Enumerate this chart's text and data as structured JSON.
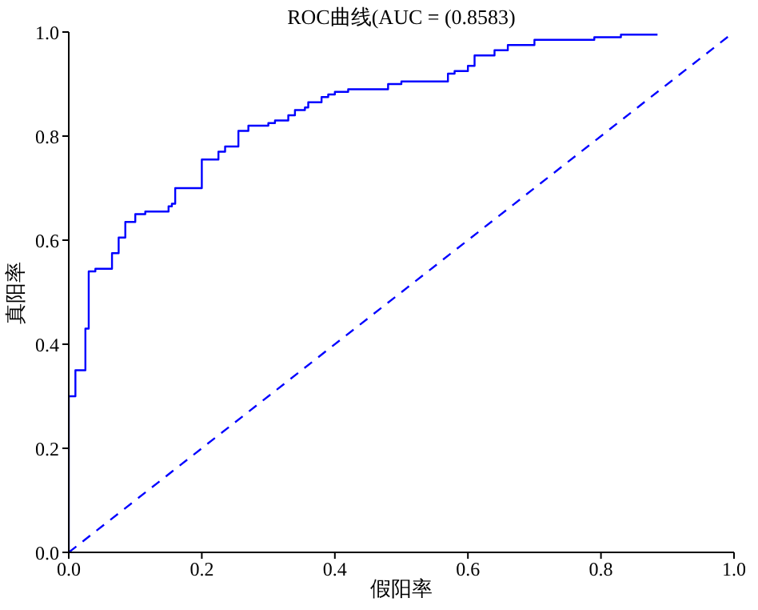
{
  "chart_data": {
    "type": "line",
    "title": "ROC曲线(AUC = (0.8583)",
    "xlabel": "假阳率",
    "ylabel": "真阳率",
    "xlim": [
      0,
      1
    ],
    "ylim": [
      0,
      1
    ],
    "xticks": [
      {
        "value": 0,
        "label": "0.0"
      },
      {
        "value": 0.2,
        "label": "0.2"
      },
      {
        "value": 0.4,
        "label": "0.4"
      },
      {
        "value": 0.6,
        "label": "0.6"
      },
      {
        "value": 0.8,
        "label": "0.8"
      },
      {
        "value": 1,
        "label": "1.0"
      }
    ],
    "yticks": [
      {
        "value": 0,
        "label": "0.0"
      },
      {
        "value": 0.2,
        "label": "0.2"
      },
      {
        "value": 0.4,
        "label": "0.4"
      },
      {
        "value": 0.6,
        "label": "0.6"
      },
      {
        "value": 0.8,
        "label": "0.8"
      },
      {
        "value": 1,
        "label": "1.0"
      }
    ],
    "marker": "none",
    "series": [
      {
        "color": "#0000ff",
        "line_style": "solid",
        "x": [
          0,
          0,
          0.01,
          0.01,
          0.025,
          0.025,
          0.03,
          0.03,
          0.04,
          0.04,
          0.065,
          0.065,
          0.075,
          0.075,
          0.085,
          0.085,
          0.1,
          0.1,
          0.115,
          0.115,
          0.15,
          0.15,
          0.155,
          0.155,
          0.16,
          0.16,
          0.2,
          0.2,
          0.225,
          0.225,
          0.235,
          0.235,
          0.255,
          0.255,
          0.27,
          0.27,
          0.3,
          0.3,
          0.31,
          0.31,
          0.33,
          0.33,
          0.34,
          0.34,
          0.355,
          0.355,
          0.36,
          0.36,
          0.38,
          0.38,
          0.39,
          0.39,
          0.4,
          0.4,
          0.42,
          0.42,
          0.48,
          0.48,
          0.5,
          0.5,
          0.57,
          0.57,
          0.58,
          0.58,
          0.6,
          0.6,
          0.61,
          0.61,
          0.64,
          0.64,
          0.66,
          0.66,
          0.7,
          0.7,
          0.79,
          0.79,
          0.83,
          0.83,
          0.885
        ],
        "values": [
          0,
          0.3,
          0.3,
          0.35,
          0.35,
          0.43,
          0.43,
          0.54,
          0.54,
          0.545,
          0.545,
          0.575,
          0.575,
          0.605,
          0.605,
          0.635,
          0.635,
          0.65,
          0.65,
          0.655,
          0.655,
          0.665,
          0.665,
          0.67,
          0.67,
          0.7,
          0.7,
          0.755,
          0.755,
          0.77,
          0.77,
          0.78,
          0.78,
          0.81,
          0.81,
          0.82,
          0.82,
          0.825,
          0.825,
          0.83,
          0.83,
          0.84,
          0.84,
          0.85,
          0.85,
          0.855,
          0.855,
          0.865,
          0.865,
          0.875,
          0.875,
          0.88,
          0.88,
          0.885,
          0.885,
          0.89,
          0.89,
          0.9,
          0.9,
          0.905,
          0.905,
          0.92,
          0.92,
          0.925,
          0.925,
          0.935,
          0.935,
          0.955,
          0.955,
          0.965,
          0.965,
          0.975,
          0.975,
          0.985,
          0.985,
          0.99,
          0.99,
          0.995,
          0.995
        ]
      },
      {
        "color": "#0000ff",
        "line_style": "dashed",
        "x": [
          0,
          1
        ],
        "values": [
          0,
          1
        ]
      }
    ]
  }
}
